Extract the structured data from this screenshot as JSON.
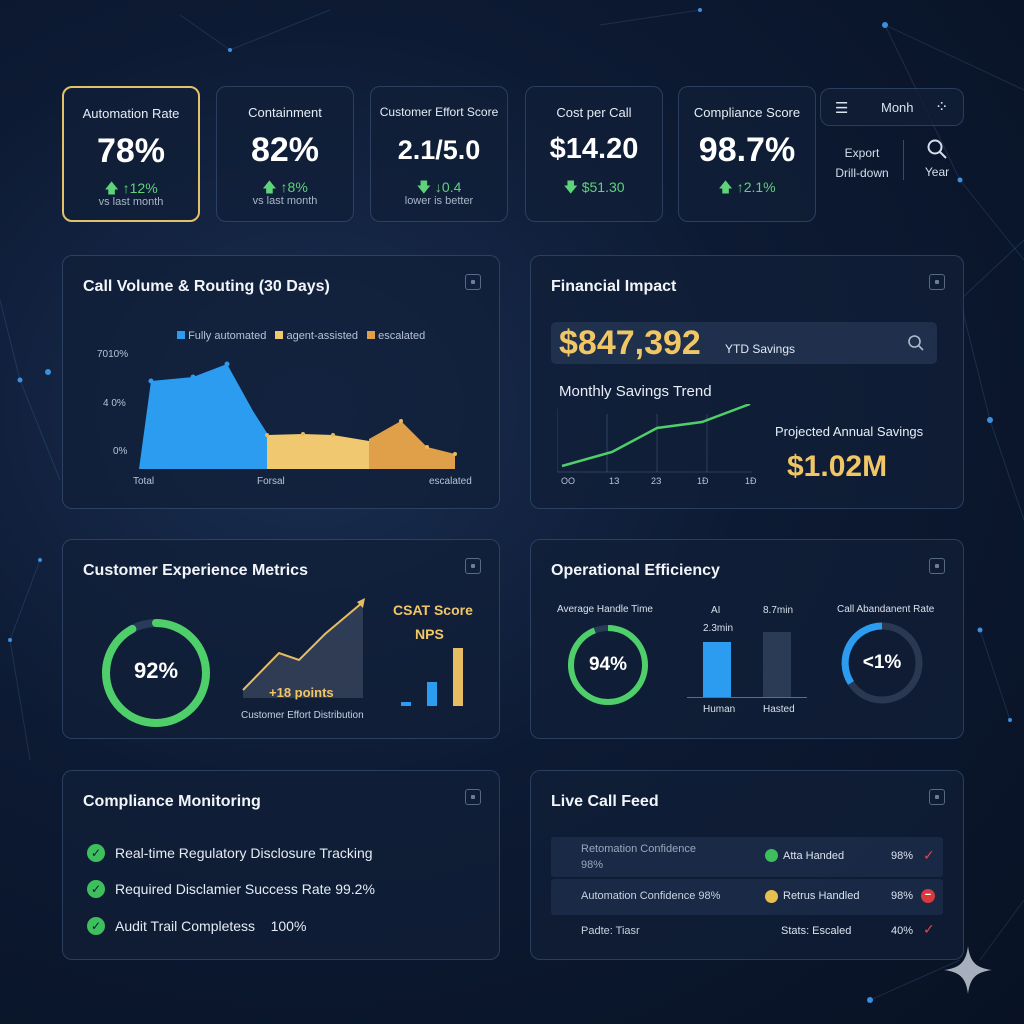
{
  "kpis": [
    {
      "label": "Automation Rate",
      "value": "78%",
      "delta": "↑12%",
      "sub": "vs last month"
    },
    {
      "label": "Containment",
      "value": "82%",
      "delta": "↑8%",
      "sub": "vs last month"
    },
    {
      "label": "Customer Effort Score",
      "value": "2.1/5.0",
      "delta": "↓0.4",
      "sub": "lower is better"
    },
    {
      "label": "Cost per Call",
      "value": "$14.20",
      "delta": "$51.30",
      "sub": ""
    },
    {
      "label": "Compliance Score",
      "value": "98.7%",
      "delta": "↑2.1%",
      "sub": ""
    }
  ],
  "controls": {
    "period": "Monh",
    "export": "Export",
    "drilldown": "Drill-down",
    "year": "Year"
  },
  "call_volume": {
    "title": "Call Volume & Routing (30 Days)",
    "legend": [
      "Fully automated",
      "agent-assisted",
      "escalated"
    ],
    "y_ticks": [
      "7010%",
      "4 0%",
      "0%"
    ],
    "x_labels": [
      "Total",
      "Forsal",
      "escalated"
    ],
    "colors": [
      "#2b9cf0",
      "#f0c870",
      "#e0a04a"
    ]
  },
  "financial": {
    "title": "Financial Impact",
    "ytd_value": "$847,392",
    "ytd_label": "YTD Savings",
    "trend_title": "Monthly Savings Trend",
    "x_ticks": [
      "OO",
      "1З",
      "2З",
      "1Đ",
      "1Đ"
    ],
    "projected_label": "Projected Annual Savings",
    "projected_value": "$1.02M"
  },
  "cx": {
    "title": "Customer Experience Metrics",
    "ring_value": "92%",
    "ring_fraction": 0.92,
    "csat": "CSAT Score",
    "nps": "NPS",
    "points": "+18 points",
    "dist_label": "Customer Effort Distribution"
  },
  "ops": {
    "title": "Operational Efficiency",
    "aht_label": "Average Handle Time",
    "aht_value": "94%",
    "ai_label": "AI",
    "ai_time": "2.3min",
    "human_time": "8.7min",
    "bar_human": "Human",
    "bar_hasted": "Hasted",
    "abandon_label": "Call Abandanent Rate",
    "abandon_value": "<1%"
  },
  "compliance": {
    "title": "Compliance Monitoring",
    "items": [
      "Real-time Regulatory Disclosure Tracking",
      "Required Disclamier Success Rate 99.2%",
      "Audit Trail Completess    100%"
    ]
  },
  "feed": {
    "title": "Live Call Feed",
    "rows": [
      {
        "left": "Retomation Confidence",
        "left2": "98%",
        "status": "Atta Handed",
        "pct": "98%",
        "mark": "✓"
      },
      {
        "left": "Automation Confidence 98%",
        "left2": "",
        "status": "Retrus Handled",
        "pct": "98%",
        "mark": "−"
      },
      {
        "left": "Padte: Tiasr",
        "left2": "",
        "status": "Stats: Escaled",
        "pct": "40%",
        "mark": "✓"
      }
    ]
  }
}
